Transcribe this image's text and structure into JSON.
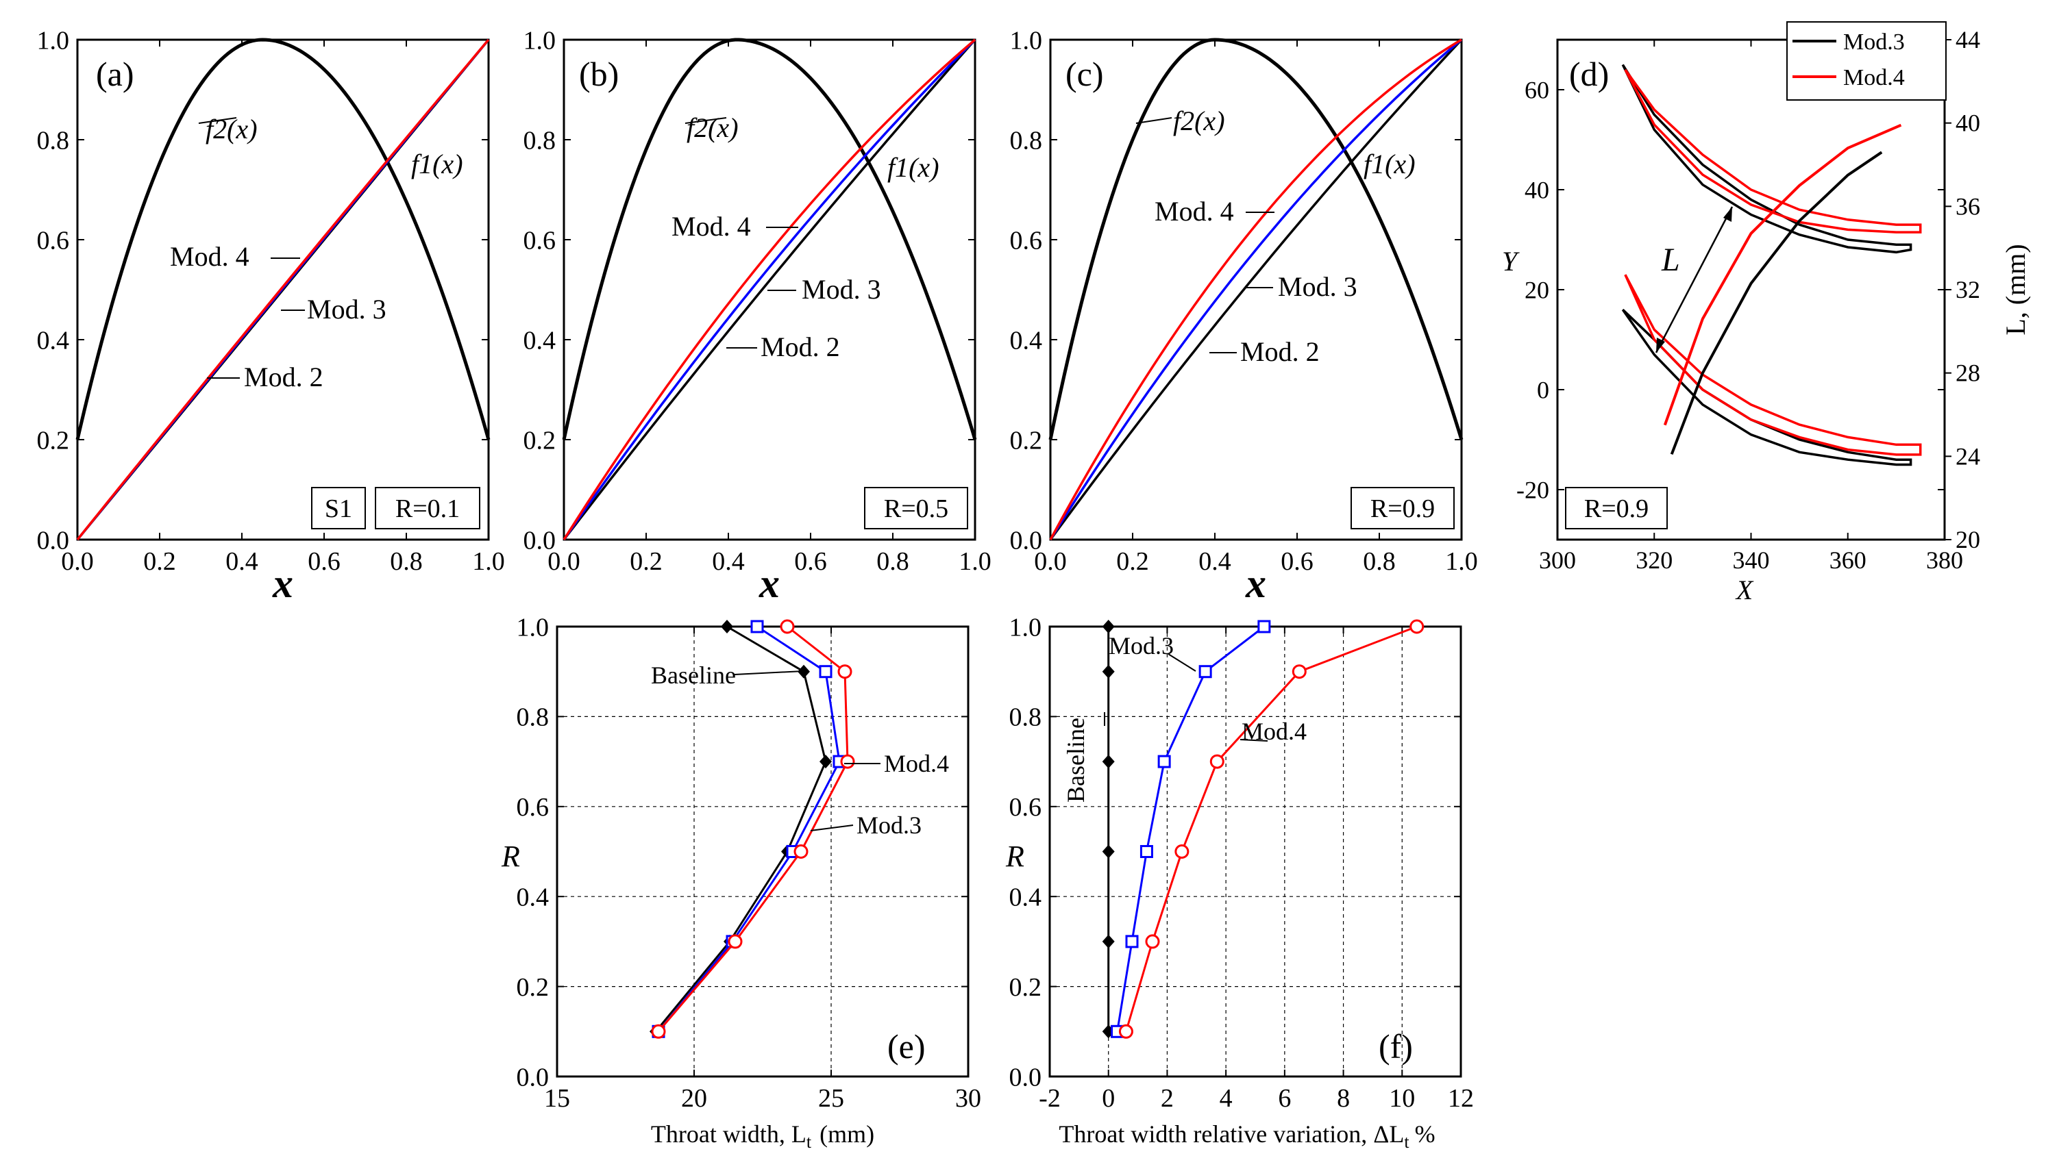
{
  "colors": {
    "baseline": "#000000",
    "mod2": "#000000",
    "mod3": "#0000ff",
    "mod4": "#ff0000"
  },
  "chart_data": [
    {
      "id": "a",
      "type": "line",
      "panel_label": "(a)",
      "xlabel": "x",
      "ylabel": "",
      "xlim": [
        0,
        1
      ],
      "ylim": [
        0,
        1
      ],
      "xticks": [
        "0.0",
        "0.2",
        "0.4",
        "0.6",
        "0.8",
        "1.0"
      ],
      "yticks": [
        "0.0",
        "0.2",
        "0.4",
        "0.6",
        "0.8",
        "1.0"
      ],
      "boxes": [
        "S1",
        "R=0.1"
      ],
      "curve_labels": {
        "f2": "f2(x)",
        "f1": "f1(x)",
        "mod4": "Mod. 4",
        "mod3": "Mod. 3",
        "mod2": "Mod. 2"
      },
      "f2": {
        "name": "f2(x)",
        "peak_x": 0.45,
        "peak_y": 1.0,
        "y0": 0.2,
        "y1": 0.2
      },
      "series": [
        {
          "name": "Mod. 2",
          "color": "#000000",
          "bow": 0.0
        },
        {
          "name": "Mod. 3",
          "color": "#0000ff",
          "bow": 0.003
        },
        {
          "name": "Mod. 4",
          "color": "#ff0000",
          "bow": 0.006
        }
      ]
    },
    {
      "id": "b",
      "type": "line",
      "panel_label": "(b)",
      "xlabel": "x",
      "ylabel": "",
      "xlim": [
        0,
        1
      ],
      "ylim": [
        0,
        1
      ],
      "xticks": [
        "0.0",
        "0.2",
        "0.4",
        "0.6",
        "0.8",
        "1.0"
      ],
      "yticks": [
        "0.0",
        "0.2",
        "0.4",
        "0.6",
        "0.8",
        "1.0"
      ],
      "boxes": [
        "R=0.5"
      ],
      "curve_labels": {
        "f2": "f2(x)",
        "f1": "f1(x)",
        "mod4": "Mod. 4",
        "mod3": "Mod. 3",
        "mod2": "Mod. 2"
      },
      "f2": {
        "name": "f2(x)",
        "peak_x": 0.42,
        "peak_y": 1.0,
        "y0": 0.2,
        "y1": 0.2
      },
      "series": [
        {
          "name": "Mod. 2",
          "color": "#000000",
          "bow": 0.018
        },
        {
          "name": "Mod. 3",
          "color": "#0000ff",
          "bow": 0.045
        },
        {
          "name": "Mod. 4",
          "color": "#ff0000",
          "bow": 0.075
        }
      ]
    },
    {
      "id": "c",
      "type": "line",
      "panel_label": "(c)",
      "xlabel": "x",
      "ylabel": "",
      "xlim": [
        0,
        1
      ],
      "ylim": [
        0,
        1
      ],
      "xticks": [
        "0.0",
        "0.2",
        "0.4",
        "0.6",
        "0.8",
        "1.0"
      ],
      "yticks": [
        "0.0",
        "0.2",
        "0.4",
        "0.6",
        "0.8",
        "1.0"
      ],
      "boxes": [
        "R=0.9"
      ],
      "curve_labels": {
        "f2": "f2(x)",
        "f1": "f1(x)",
        "mod4": "Mod. 4",
        "mod3": "Mod. 3",
        "mod2": "Mod. 2"
      },
      "f2": {
        "name": "f2(x)",
        "peak_x": 0.4,
        "peak_y": 1.0,
        "y0": 0.2,
        "y1": 0.2
      },
      "series": [
        {
          "name": "Mod. 2",
          "color": "#000000",
          "bow": 0.03
        },
        {
          "name": "Mod. 3",
          "color": "#0000ff",
          "bow": 0.08
        },
        {
          "name": "Mod. 4",
          "color": "#ff0000",
          "bow": 0.13
        }
      ]
    },
    {
      "id": "d",
      "type": "line",
      "panel_label": "(d)",
      "xlabel": "X",
      "ylabel": "Y",
      "y2label": "L, (mm)",
      "xlim": [
        300,
        380
      ],
      "ylim": [
        -30,
        70
      ],
      "y2lim": [
        20,
        44
      ],
      "xticks": [
        "300",
        "320",
        "340",
        "360",
        "380"
      ],
      "yticks": [
        "-20",
        "0",
        "20",
        "40",
        "60"
      ],
      "y2ticks": [
        "20",
        "24",
        "28",
        "32",
        "36",
        "40",
        "44"
      ],
      "boxes": [
        "R=0.9"
      ],
      "arrow_label": "L",
      "legend": [
        {
          "name": "Mod.3",
          "color": "#000000"
        },
        {
          "name": "Mod.4",
          "color": "#ff0000"
        }
      ],
      "blades": [
        {
          "name": "Mod.3 upper blade",
          "color": "#000000",
          "upper": [
            [
              313.5,
              65
            ],
            [
              320,
              55
            ],
            [
              330,
              45
            ],
            [
              340,
              38
            ],
            [
              350,
              33
            ],
            [
              360,
              30
            ],
            [
              370,
              29
            ],
            [
              373,
              29
            ]
          ],
          "lower": [
            [
              313.5,
              65
            ],
            [
              320,
              52
            ],
            [
              330,
              41
            ],
            [
              340,
              35
            ],
            [
              350,
              31
            ],
            [
              360,
              28.5
            ],
            [
              370,
              27.5
            ],
            [
              373,
              28
            ]
          ]
        },
        {
          "name": "Mod.4 upper blade",
          "color": "#ff0000",
          "upper": [
            [
              314,
              64
            ],
            [
              320,
              56
            ],
            [
              330,
              47
            ],
            [
              340,
              40
            ],
            [
              350,
              36
            ],
            [
              360,
              34
            ],
            [
              370,
              33
            ],
            [
              375,
              33
            ]
          ],
          "lower": [
            [
              314,
              64
            ],
            [
              320,
              53
            ],
            [
              330,
              43
            ],
            [
              340,
              37
            ],
            [
              350,
              33.5
            ],
            [
              360,
              32
            ],
            [
              370,
              31.5
            ],
            [
              375,
              31.5
            ]
          ]
        },
        {
          "name": "Mod.3 lower blade",
          "color": "#000000",
          "upper": [
            [
              313.5,
              16
            ],
            [
              320,
              10
            ],
            [
              330,
              0
            ],
            [
              340,
              -6
            ],
            [
              350,
              -10
            ],
            [
              360,
              -12.5
            ],
            [
              370,
              -14
            ],
            [
              373,
              -14
            ]
          ],
          "lower": [
            [
              313.5,
              16
            ],
            [
              320,
              7
            ],
            [
              330,
              -3
            ],
            [
              340,
              -9
            ],
            [
              350,
              -12.5
            ],
            [
              360,
              -14
            ],
            [
              370,
              -15
            ],
            [
              373,
              -15
            ]
          ]
        },
        {
          "name": "Mod.4 lower blade",
          "color": "#ff0000",
          "upper": [
            [
              314,
              23
            ],
            [
              320,
              12
            ],
            [
              330,
              3
            ],
            [
              340,
              -3
            ],
            [
              350,
              -7
            ],
            [
              360,
              -9.5
            ],
            [
              370,
              -11
            ],
            [
              375,
              -11
            ]
          ],
          "lower": [
            [
              314,
              23
            ],
            [
              320,
              10
            ],
            [
              330,
              0
            ],
            [
              340,
              -6
            ],
            [
              350,
              -9.5
            ],
            [
              360,
              -12
            ],
            [
              370,
              -13
            ],
            [
              375,
              -13
            ]
          ]
        }
      ],
      "L_curves": [
        {
          "name": "Mod.3",
          "color": "#000000",
          "points": [
            [
              323.6,
              24.1
            ],
            [
              330,
              28.0
            ],
            [
              340,
              32.3
            ],
            [
              350,
              35.3
            ],
            [
              360,
              37.5
            ],
            [
              367,
              38.6
            ]
          ]
        },
        {
          "name": "Mod.4",
          "color": "#ff0000",
          "points": [
            [
              322.2,
              25.5
            ],
            [
              330,
              30.6
            ],
            [
              340,
              34.7
            ],
            [
              350,
              37.0
            ],
            [
              360,
              38.8
            ],
            [
              371,
              39.9
            ]
          ]
        }
      ]
    },
    {
      "id": "e",
      "type": "line",
      "panel_label": "(e)",
      "xlabel": "Throat width, L",
      "xlabel_sub": "t",
      "xlabel_unit": "(mm)",
      "ylabel": "R",
      "xlim": [
        15,
        30
      ],
      "ylim": [
        0,
        1
      ],
      "xticks": [
        "15",
        "20",
        "25",
        "30"
      ],
      "yticks": [
        "0.0",
        "0.2",
        "0.4",
        "0.6",
        "0.8",
        "1.0"
      ],
      "curve_labels": {
        "baseline": "Baseline",
        "mod4": "Mod.4",
        "mod3": "Mod.3"
      },
      "series": [
        {
          "name": "Baseline",
          "color": "#000000",
          "marker": "diamond",
          "x": [
            18.6,
            21.3,
            23.4,
            24.8,
            24.0,
            21.2
          ],
          "y": [
            0.1,
            0.3,
            0.5,
            0.7,
            0.9,
            1.0
          ]
        },
        {
          "name": "Mod.3",
          "color": "#0000ff",
          "marker": "square",
          "x": [
            18.7,
            21.4,
            23.6,
            25.3,
            24.8,
            22.3
          ],
          "y": [
            0.1,
            0.3,
            0.5,
            0.7,
            0.9,
            1.0
          ]
        },
        {
          "name": "Mod.4",
          "color": "#ff0000",
          "marker": "circle",
          "x": [
            18.7,
            21.5,
            23.9,
            25.6,
            25.5,
            23.4
          ],
          "y": [
            0.1,
            0.3,
            0.5,
            0.7,
            0.9,
            1.0
          ]
        }
      ]
    },
    {
      "id": "f",
      "type": "line",
      "panel_label": "(f)",
      "xlabel": "Throat width relative variation, ΔL",
      "xlabel_sub": "t",
      "xlabel_unit": "%",
      "ylabel": "R",
      "xlim": [
        -2,
        12
      ],
      "ylim": [
        0,
        1
      ],
      "xticks": [
        "-2",
        "0",
        "2",
        "4",
        "6",
        "8",
        "10",
        "12"
      ],
      "yticks": [
        "0.0",
        "0.2",
        "0.4",
        "0.6",
        "0.8",
        "1.0"
      ],
      "curve_labels": {
        "baseline": "Baseline",
        "mod4": "Mod.4",
        "mod3": "Mod.3"
      },
      "series": [
        {
          "name": "Baseline",
          "color": "#000000",
          "marker": "diamond",
          "x": [
            0,
            0,
            0,
            0,
            0,
            0
          ],
          "y": [
            0.1,
            0.3,
            0.5,
            0.7,
            0.9,
            1.0
          ]
        },
        {
          "name": "Mod.3",
          "color": "#0000ff",
          "marker": "square",
          "x": [
            0.3,
            0.8,
            1.3,
            1.9,
            3.3,
            5.3
          ],
          "y": [
            0.1,
            0.3,
            0.5,
            0.7,
            0.9,
            1.0
          ]
        },
        {
          "name": "Mod.4",
          "color": "#ff0000",
          "marker": "circle",
          "x": [
            0.6,
            1.5,
            2.5,
            3.7,
            6.5,
            10.5
          ],
          "y": [
            0.1,
            0.3,
            0.5,
            0.7,
            0.9,
            1.0
          ]
        }
      ]
    }
  ]
}
